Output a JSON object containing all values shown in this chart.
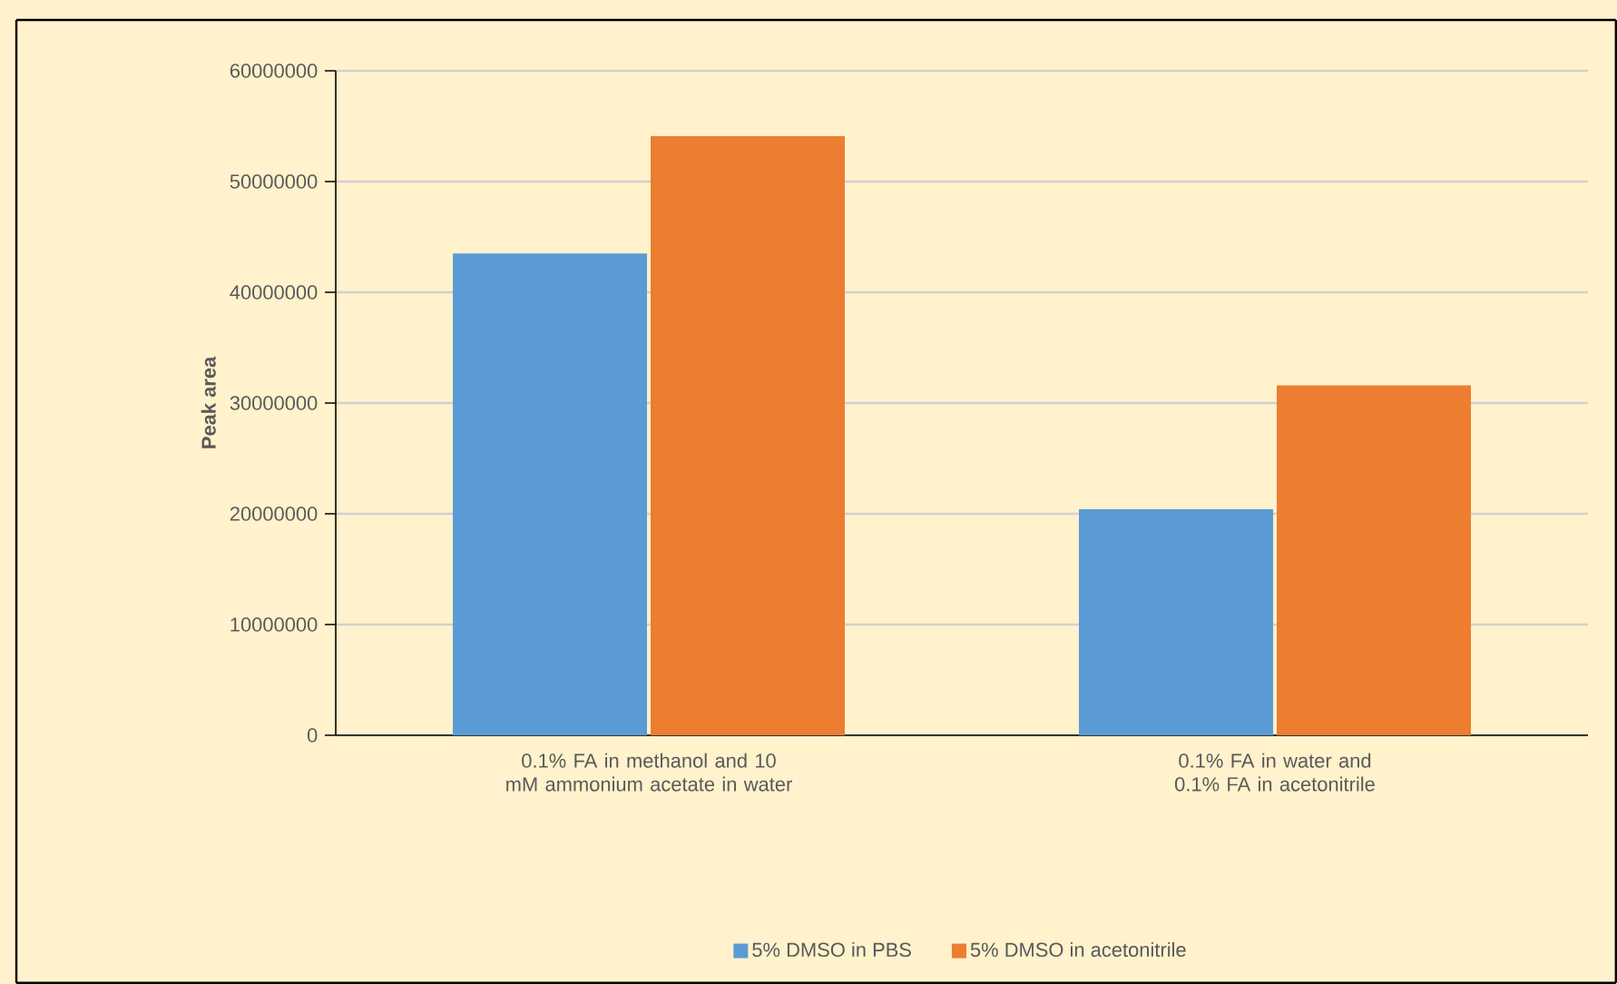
{
  "chart_data": {
    "type": "bar",
    "ylabel": "Peak area",
    "categories": [
      "0.1% FA in methanol and 10 mM ammonium acetate in water",
      "0.1% FA in water and 0.1% FA in acetonitrile"
    ],
    "series": [
      {
        "name": "5% DMSO in PBS",
        "color": "#5b9bd5",
        "values": [
          43500000,
          20400000
        ]
      },
      {
        "name": "5% DMSO in acetonitrile",
        "color": "#ed7d31",
        "values": [
          54100000,
          31600000
        ]
      }
    ],
    "ylim": [
      0,
      60000000
    ],
    "yticks": [
      0,
      10000000,
      20000000,
      30000000,
      40000000,
      50000000,
      60000000
    ],
    "grid": "y",
    "legend": "bottom"
  }
}
